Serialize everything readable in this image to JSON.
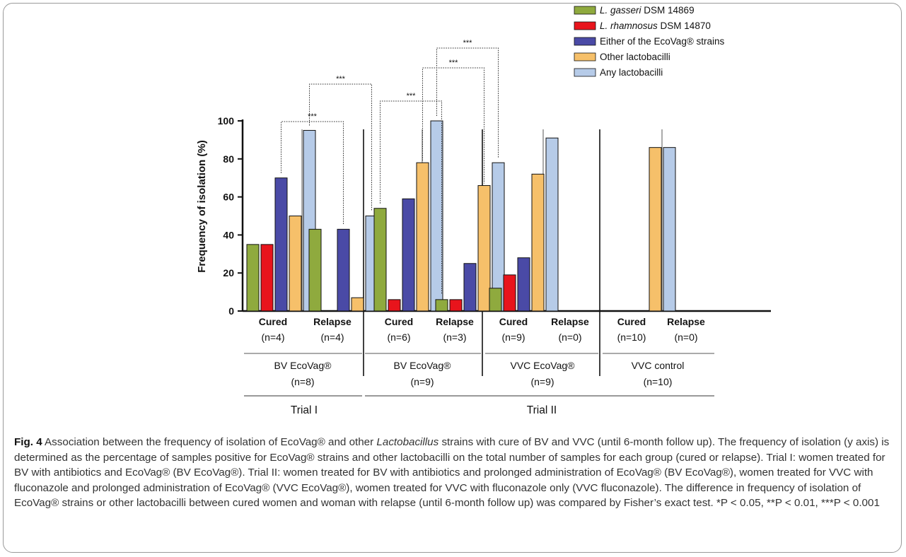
{
  "chart_data": {
    "type": "bar",
    "ylabel": "Frequency of isolation (%)",
    "ylim": [
      0,
      100
    ],
    "yticks": [
      0,
      20,
      40,
      60,
      80,
      100
    ],
    "grid": false,
    "legend_position": "top-right",
    "series": [
      {
        "name": "DSM 14869",
        "name_italic": "L. gasseri",
        "color": "#8faa3e"
      },
      {
        "name": "DSM 14870",
        "name_italic": "L. rhamnosus",
        "color": "#e8141c"
      },
      {
        "name": "Either of the EcoVag® strains",
        "name_italic": "",
        "color": "#4a4aa6"
      },
      {
        "name": "Other lactobacilli",
        "name_italic": "",
        "color": "#f6c06a"
      },
      {
        "name": "Any lactobacilli",
        "name_italic": "",
        "color": "#b6cbe8"
      }
    ],
    "groups": [
      {
        "label": "Cured",
        "n": "(n=4)",
        "values": [
          35,
          35,
          70,
          50,
          95
        ]
      },
      {
        "label": "Relapse",
        "n": "(n=4)",
        "values": [
          43,
          0,
          43,
          7,
          50
        ]
      },
      {
        "label": "Cured",
        "n": "(n=6)",
        "values": [
          54,
          6,
          59,
          78,
          100
        ]
      },
      {
        "label": "Relapse",
        "n": "(n=3)",
        "values": [
          6,
          6,
          25,
          66,
          78
        ]
      },
      {
        "label": "Cured",
        "n": "(n=9)",
        "values": [
          12,
          19,
          28,
          72,
          91
        ]
      },
      {
        "label": "Relapse",
        "n": "(n=0)",
        "values": [
          0,
          0,
          0,
          0,
          0
        ]
      },
      {
        "label": "Cured",
        "n": "(n=10)",
        "values": [
          0,
          0,
          0,
          86,
          86
        ]
      },
      {
        "label": "Relapse",
        "n": "(n=0)",
        "values": [
          0,
          0,
          0,
          0,
          0
        ]
      }
    ],
    "treatments": [
      {
        "label": "BV EcoVag®",
        "n": "(n=8)"
      },
      {
        "label": "BV EcoVag®",
        "n": "(n=9)"
      },
      {
        "label": "VVC EcoVag®",
        "n": "(n=9)"
      },
      {
        "label": "VVC control",
        "n": "(n=10)"
      }
    ],
    "trials": [
      "Trial I",
      "Trial II"
    ],
    "significance": [
      {
        "label": "***",
        "from_group": 0,
        "from_series": 2,
        "to_group": 1,
        "to_series": 2
      },
      {
        "label": "***",
        "from_group": 0,
        "from_series": 4,
        "to_group": 1,
        "to_series": 4
      },
      {
        "label": "***",
        "from_group": 2,
        "from_series": 0,
        "to_group": 3,
        "to_series": 0
      },
      {
        "label": "***",
        "from_group": 2,
        "from_series": 3,
        "to_group": 3,
        "to_series": 3
      },
      {
        "label": "***",
        "from_group": 2,
        "from_series": 4,
        "to_group": 3,
        "to_series": 4
      }
    ]
  },
  "caption": {
    "fig_label": "Fig. 4",
    "p1": " Association between the frequency of isolation of EcoVag® and other ",
    "italic": "Lactobacillus",
    "p2": " strains with cure of BV and VVC (until 6-month follow up). The frequency of isolation (y axis) is determined as the percentage of samples positive for EcoVag® strains and other lactobacilli on the total number of samples for each group (cured or relapse). Trial I: women treated for BV with antibiotics and EcoVag® (BV EcoVag®). Trial II: women treated for BV with antibiotics and prolonged administration of EcoVag® (BV EcoVag®), women treated for VVC with fluconazole and prolonged administration of EcoVag® (VVC EcoVag®), women treated for VVC with fluconazole only (VVC fluconazole). The difference in frequency of isolation of EcoVag® strains or other lactobacilli between cured women and woman with relapse (until 6-month follow up) was compared by Fisher’s exact test. *P < 0.05, **P < 0.01, ***P < 0.001"
  }
}
